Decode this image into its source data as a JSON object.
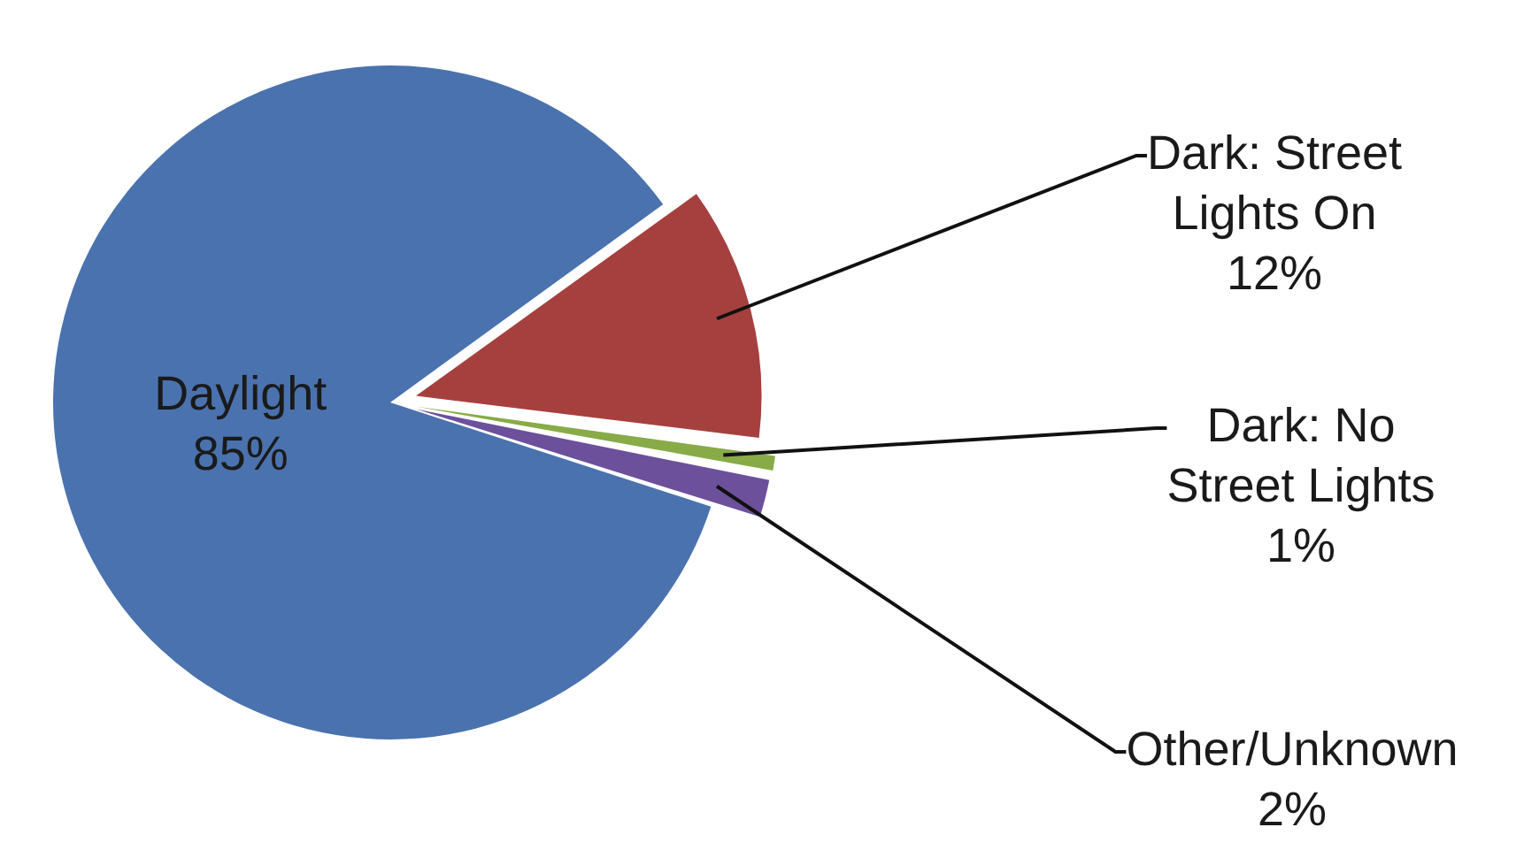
{
  "chart_data": {
    "type": "pie",
    "categories": [
      "Daylight",
      "Dark: Street Lights On",
      "Dark: No Street Lights",
      "Other/Unknown"
    ],
    "values": [
      85,
      12,
      1,
      2
    ],
    "value_labels": [
      "85%",
      "12%",
      "1%",
      "2%"
    ],
    "colors": [
      "#4a72ae",
      "#a6403e",
      "#88ab48",
      "#6c509c"
    ],
    "legend": false
  }
}
